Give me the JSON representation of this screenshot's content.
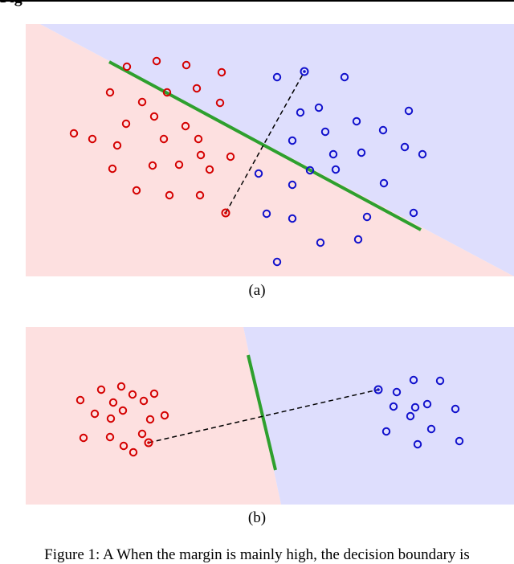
{
  "header": {
    "text": "Fig"
  },
  "colors": {
    "class_red": "#d40000",
    "class_blue": "#1010cc",
    "region_red": "#fde0e0",
    "region_blue": "#dedefd",
    "boundary": "#2ea02e",
    "link": "#000000"
  },
  "panels": [
    {
      "id": "a",
      "caption": "(a)",
      "description_style": "points near the boundary; prototypes connected by dashed line crossing the green boundary"
    },
    {
      "id": "b",
      "caption": "(b)",
      "description_style": "two well-separated clusters; dashed line between prototypes crosses the short green boundary"
    }
  ],
  "bottom_text": "Figure 1: A When the margin is mainly high, the decision boundary is"
}
